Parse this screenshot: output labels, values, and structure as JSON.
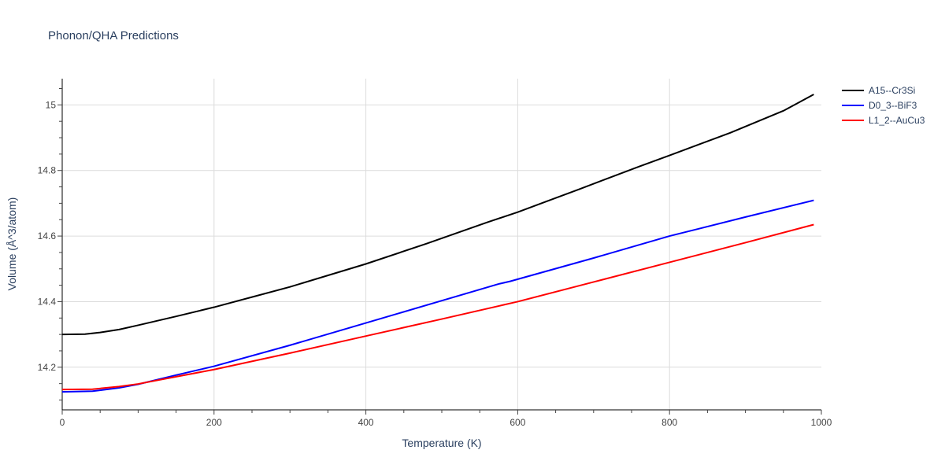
{
  "chart_data": {
    "type": "line",
    "title": "Phonon/QHA Predictions",
    "xlabel": "Temperature (K)",
    "ylabel": "Volume (Å^3/atom)",
    "xlim": [
      0,
      1000
    ],
    "ylim": [
      14.07,
      15.08
    ],
    "xticks": [
      0,
      200,
      400,
      600,
      800,
      1000
    ],
    "yticks": [
      14.2,
      14.4,
      14.6,
      14.8,
      15
    ],
    "xtick_labels": [
      "0",
      "200",
      "400",
      "600",
      "800",
      "1000"
    ],
    "ytick_labels": [
      "14.2",
      "14.4",
      "14.6",
      "14.8",
      "15"
    ],
    "grid": true,
    "legend_position": "top-right",
    "series": [
      {
        "name": "A15--Cr3Si",
        "color": "#000000",
        "x": [
          0,
          30,
          50,
          75,
          100,
          150,
          200,
          250,
          300,
          400,
          480,
          560,
          600,
          680,
          760,
          800,
          880,
          950,
          990
        ],
        "y": [
          14.3,
          14.301,
          14.306,
          14.315,
          14.328,
          14.355,
          14.383,
          14.414,
          14.445,
          14.515,
          14.577,
          14.642,
          14.673,
          14.742,
          14.812,
          14.846,
          14.915,
          14.982,
          15.032
        ]
      },
      {
        "name": "D0_3--BiF3",
        "color": "#0000ff",
        "x": [
          0,
          40,
          75,
          100,
          150,
          200,
          300,
          400,
          500,
          575,
          590,
          700,
          800,
          900,
          990
        ],
        "y": [
          14.125,
          14.127,
          14.137,
          14.148,
          14.176,
          14.203,
          14.267,
          14.335,
          14.403,
          14.454,
          14.462,
          14.533,
          14.6,
          14.658,
          14.709
        ]
      },
      {
        "name": "L1_2--AuCu3",
        "color": "#ff0000",
        "x": [
          0,
          40,
          75,
          100,
          150,
          200,
          300,
          400,
          500,
          600,
          700,
          800,
          900,
          990
        ],
        "y": [
          14.132,
          14.133,
          14.141,
          14.149,
          14.171,
          14.193,
          14.243,
          14.295,
          14.347,
          14.4,
          14.46,
          14.52,
          14.58,
          14.635
        ]
      }
    ]
  }
}
